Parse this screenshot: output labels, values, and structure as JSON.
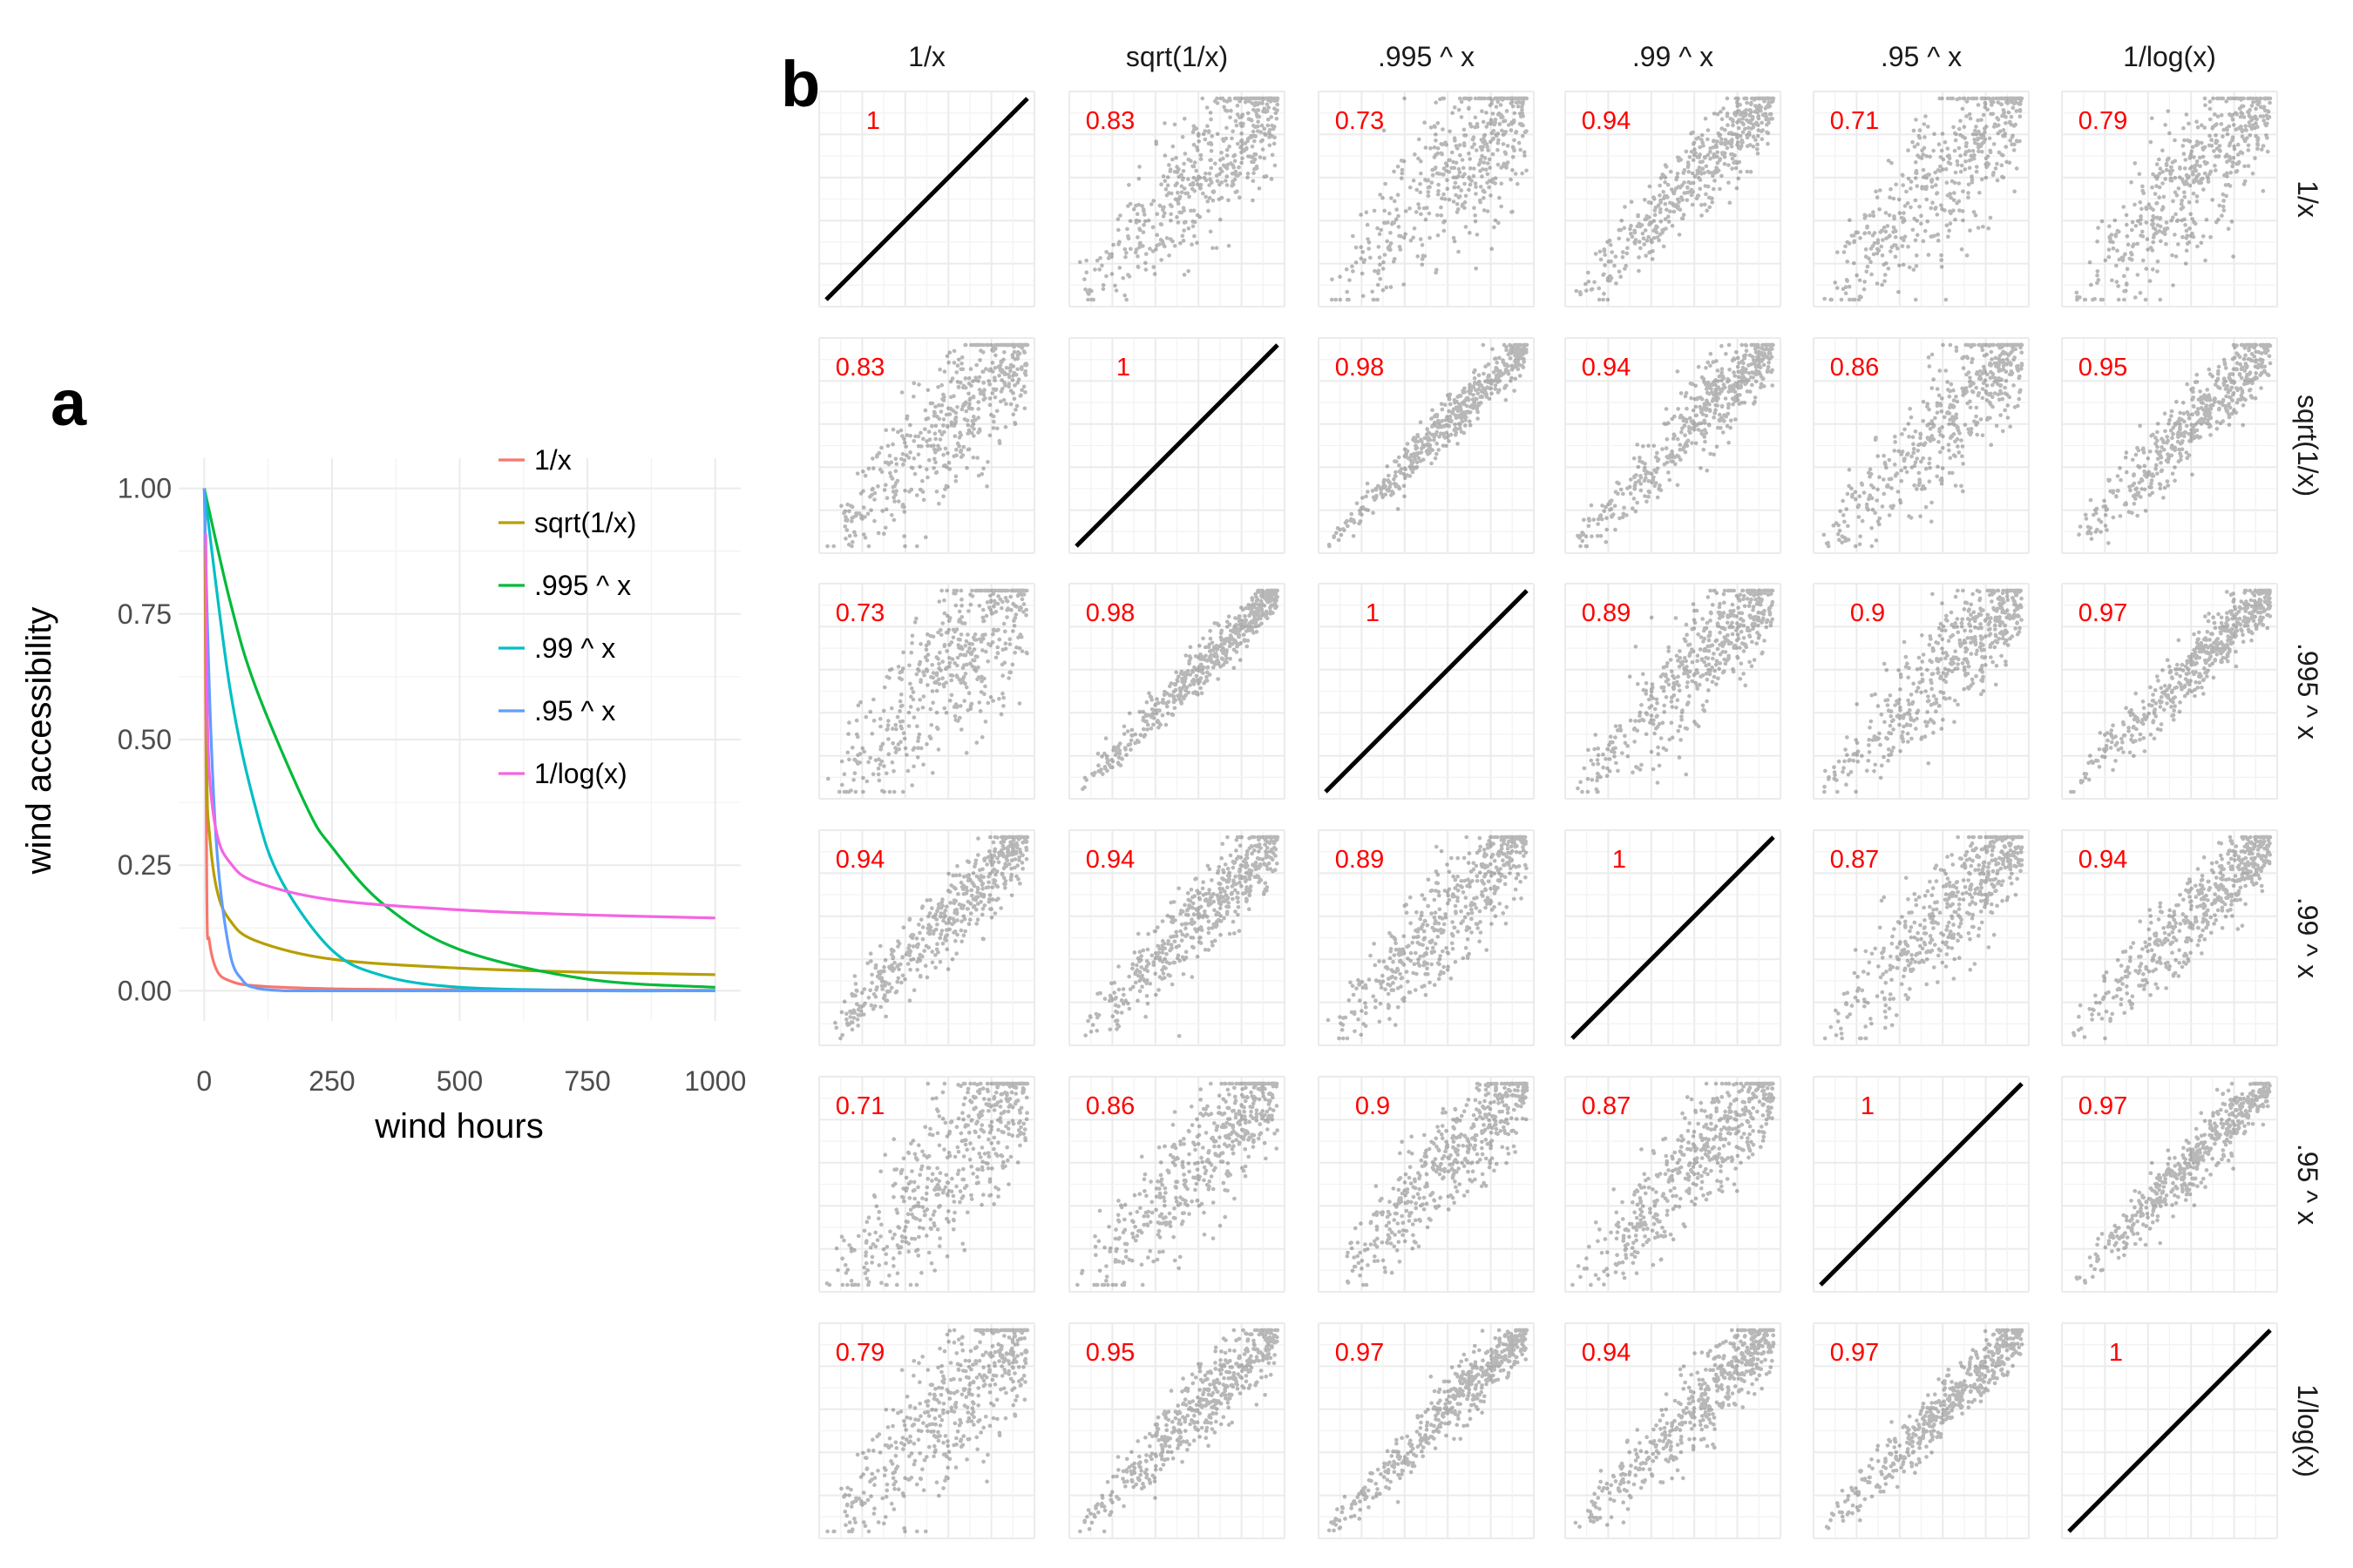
{
  "panel_a": {
    "letter": "a",
    "chart_data": {
      "type": "line",
      "xlabel": "wind hours",
      "ylabel": "wind accessibility",
      "xlim": [
        0,
        1000
      ],
      "ylim": [
        0,
        1
      ],
      "x_ticks": [
        0,
        250,
        500,
        750,
        1000
      ],
      "y_ticks": [
        "0.00",
        "0.25",
        "0.50",
        "0.75",
        "1.00"
      ],
      "grid": true,
      "legend_position": "top-right",
      "series": [
        {
          "name": "1/x",
          "color": "#F8766D",
          "x": [
            1,
            5,
            10,
            25,
            50,
            100,
            250,
            500,
            750,
            1000
          ],
          "values": [
            1.0,
            0.2,
            0.1,
            0.04,
            0.02,
            0.01,
            0.004,
            0.002,
            0.0013,
            0.001
          ]
        },
        {
          "name": "sqrt(1/x)",
          "color": "#B79F00",
          "x": [
            1,
            5,
            10,
            25,
            50,
            100,
            250,
            500,
            750,
            1000
          ],
          "values": [
            1.0,
            0.447,
            0.316,
            0.2,
            0.141,
            0.1,
            0.063,
            0.045,
            0.037,
            0.032
          ]
        },
        {
          "name": ".995 ^ x",
          "color": "#00BA38",
          "x": [
            0,
            50,
            100,
            200,
            250,
            350,
            500,
            750,
            1000
          ],
          "values": [
            1.0,
            0.778,
            0.606,
            0.367,
            0.286,
            0.173,
            0.082,
            0.023,
            0.007
          ]
        },
        {
          "name": ".99 ^ x",
          "color": "#00BFC4",
          "x": [
            0,
            50,
            100,
            150,
            250,
            350,
            500,
            750,
            1000
          ],
          "values": [
            1.0,
            0.605,
            0.366,
            0.221,
            0.081,
            0.03,
            0.007,
            0.0005,
            0.0
          ]
        },
        {
          "name": ".95 ^ x",
          "color": "#619CFF",
          "x": [
            0,
            10,
            25,
            50,
            75,
            100,
            150,
            250,
            1000
          ],
          "values": [
            1.0,
            0.599,
            0.277,
            0.077,
            0.021,
            0.006,
            0.0005,
            0.0,
            0.0
          ]
        },
        {
          "name": "1/log(x)",
          "color": "#F564E3",
          "x": [
            3,
            5,
            10,
            25,
            50,
            100,
            250,
            500,
            750,
            1000
          ],
          "values": [
            0.91,
            0.621,
            0.434,
            0.311,
            0.256,
            0.217,
            0.181,
            0.161,
            0.151,
            0.145
          ]
        }
      ]
    }
  },
  "panel_b": {
    "letter": "b",
    "chart_data": {
      "type": "scatter",
      "description": "pairwise scatterplot matrix of accessibility measures with correlation coefficients",
      "variables": [
        "1/x",
        "sqrt(1/x)",
        ".995 ^ x",
        ".99 ^ x",
        ".95 ^ x",
        "1/log(x)"
      ],
      "correlations": [
        [
          "1",
          "0.83",
          "0.73",
          "0.94",
          "0.71",
          "0.79"
        ],
        [
          "0.83",
          "1",
          "0.98",
          "0.94",
          "0.86",
          "0.95"
        ],
        [
          "0.73",
          "0.98",
          "1",
          "0.89",
          "0.9",
          "0.97"
        ],
        [
          "0.94",
          "0.94",
          "0.89",
          "1",
          "0.87",
          "0.94"
        ],
        [
          "0.71",
          "0.86",
          "0.9",
          "0.87",
          "1",
          "0.97"
        ],
        [
          "0.79",
          "0.95",
          "0.97",
          "0.94",
          "0.97",
          "1"
        ]
      ],
      "correlation_color": "#ff0000",
      "point_color": "#000000",
      "grid": true
    }
  }
}
